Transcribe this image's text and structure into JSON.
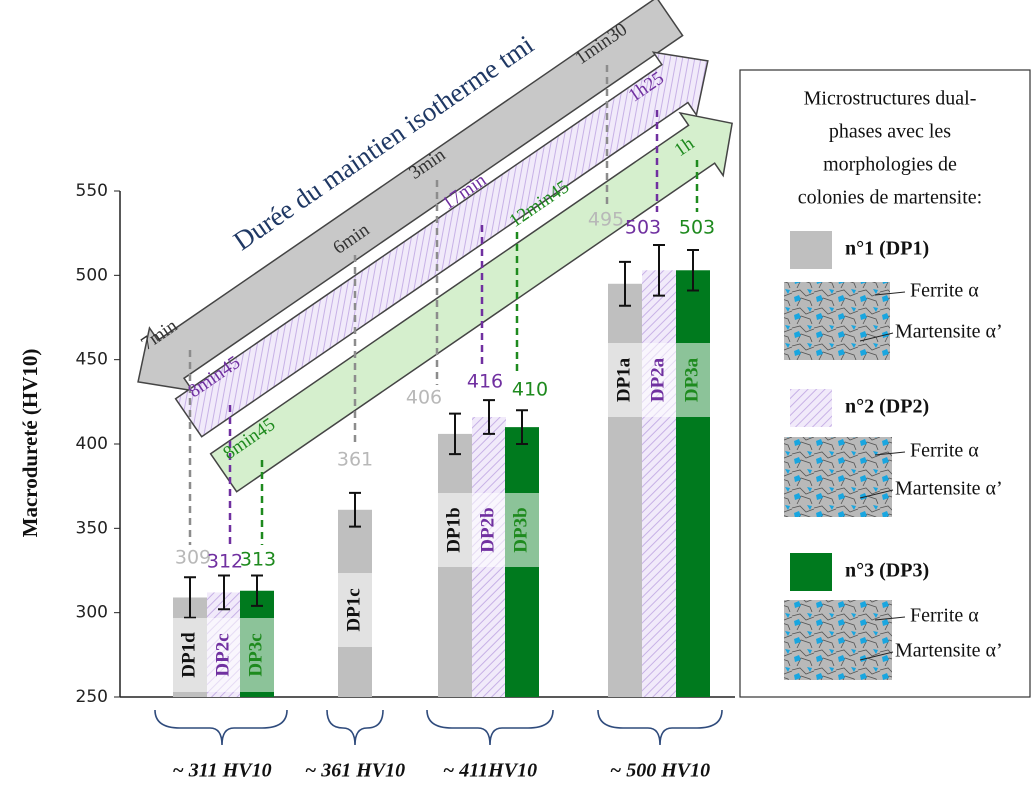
{
  "chart_data": {
    "type": "bar",
    "title": "Durée du maintien isotherme tmi",
    "y_label": "Macrodureté (HV10)",
    "categories": [
      "~ 311 HV10",
      "~ 361 HV10",
      "~ 411HV10",
      "~ 500 HV10"
    ],
    "ylim": [
      250,
      550
    ],
    "yticks": [
      250,
      300,
      350,
      400,
      450,
      500,
      550
    ],
    "legend_title": [
      "Microstructures dual-",
      "phases avec les",
      "morphologies de",
      "colonies de martensite:"
    ],
    "series": [
      {
        "name": "n°1 (DP1)",
        "color": "#bfbfbf",
        "label_color": "#b8b8b8",
        "hatch": false,
        "values": [
          309,
          361,
          406,
          495
        ],
        "errors": [
          12,
          10,
          12,
          13
        ],
        "bar_labels": [
          "DP1d",
          "DP1c",
          "DP1b",
          "DP1a"
        ],
        "durations": [
          "7min",
          "6min",
          "3min",
          "1min30"
        ],
        "micro_labels": [
          "Ferrite α",
          "Martensite α’"
        ]
      },
      {
        "name": "n°2 (DP2)",
        "color": "#ece4f7",
        "label_color": "#7030a0",
        "hatch": true,
        "values": [
          312,
          null,
          416,
          503
        ],
        "errors": [
          10,
          null,
          10,
          15
        ],
        "bar_labels": [
          "DP2c",
          null,
          "DP2b",
          "DP2a"
        ],
        "durations": [
          "8min45",
          null,
          "17min",
          "1h25"
        ],
        "micro_labels": [
          "Ferrite α",
          "Martensite α’"
        ]
      },
      {
        "name": "n°3 (DP3)",
        "color": "#007a1e",
        "label_color": "#1e8a1e",
        "hatch": false,
        "values": [
          313,
          null,
          410,
          503
        ],
        "errors": [
          9,
          null,
          10,
          12
        ],
        "bar_labels": [
          "DP3c",
          null,
          "DP3b",
          "DP3a"
        ],
        "durations": [
          "8min45",
          null,
          "12min45",
          "1h"
        ],
        "micro_labels": [
          "Ferrite α",
          "Martensite α’"
        ]
      }
    ]
  }
}
